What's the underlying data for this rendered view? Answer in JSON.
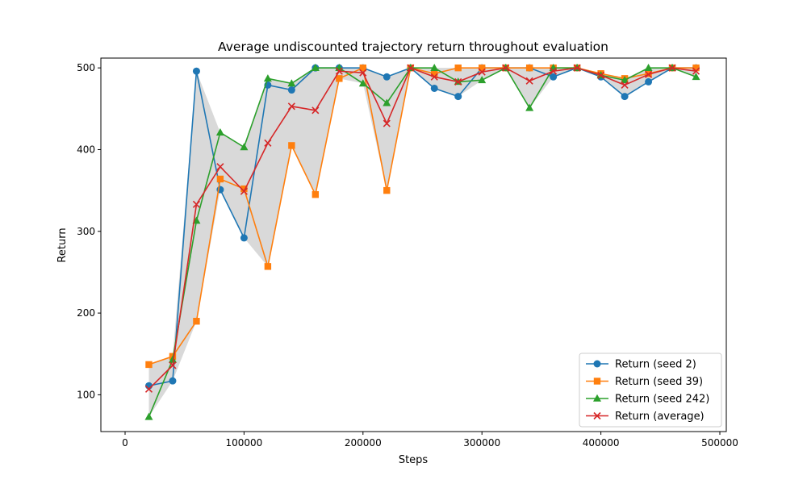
{
  "chart_data": {
    "type": "line",
    "title": "Average undiscounted trajectory return throughout evaluation",
    "xlabel": "Steps",
    "ylabel": "Return",
    "xlim": [
      0,
      500000
    ],
    "ylim": [
      55,
      512
    ],
    "x_ticks": [
      0,
      100000,
      200000,
      300000,
      400000,
      500000
    ],
    "x_tick_labels": [
      "0",
      "100000",
      "200000",
      "300000",
      "400000",
      "500000"
    ],
    "y_ticks": [
      100,
      200,
      300,
      400,
      500
    ],
    "y_tick_labels": [
      "100",
      "200",
      "300",
      "400",
      "500"
    ],
    "grid": false,
    "legend_position": "lower-right",
    "shaded_band": "min-max range across seeds",
    "x": [
      20000,
      40000,
      60000,
      80000,
      100000,
      120000,
      140000,
      160000,
      180000,
      200000,
      220000,
      240000,
      260000,
      280000,
      300000,
      320000,
      340000,
      360000,
      380000,
      400000,
      420000,
      440000,
      460000,
      480000
    ],
    "series": [
      {
        "name": "Return (seed 2)",
        "color": "#1f77b4",
        "marker": "circle",
        "values": [
          111,
          117,
          496,
          351,
          292,
          479,
          473,
          500,
          500,
          500,
          489,
          500,
          475,
          465,
          500,
          500,
          500,
          489,
          500,
          489,
          465,
          483,
          500,
          500
        ]
      },
      {
        "name": "Return (seed 39)",
        "color": "#ff7f0e",
        "marker": "square",
        "values": [
          137,
          147,
          190,
          364,
          352,
          257,
          405,
          345,
          487,
          500,
          350,
          500,
          493,
          500,
          500,
          500,
          500,
          500,
          500,
          493,
          487,
          493,
          500,
          500
        ]
      },
      {
        "name": "Return (seed 242)",
        "color": "#2ca02c",
        "marker": "triangle",
        "values": [
          73,
          143,
          313,
          421,
          403,
          487,
          481,
          500,
          500,
          481,
          457,
          500,
          500,
          483,
          485,
          500,
          451,
          500,
          500,
          491,
          485,
          500,
          500,
          489
        ]
      },
      {
        "name": "Return (average)",
        "color": "#d62728",
        "marker": "x",
        "values": [
          107,
          136,
          333,
          379,
          349,
          408,
          453,
          448,
          496,
          494,
          432,
          500,
          489,
          483,
          495,
          500,
          484,
          496,
          500,
          491,
          479,
          492,
          500,
          496
        ]
      }
    ]
  }
}
